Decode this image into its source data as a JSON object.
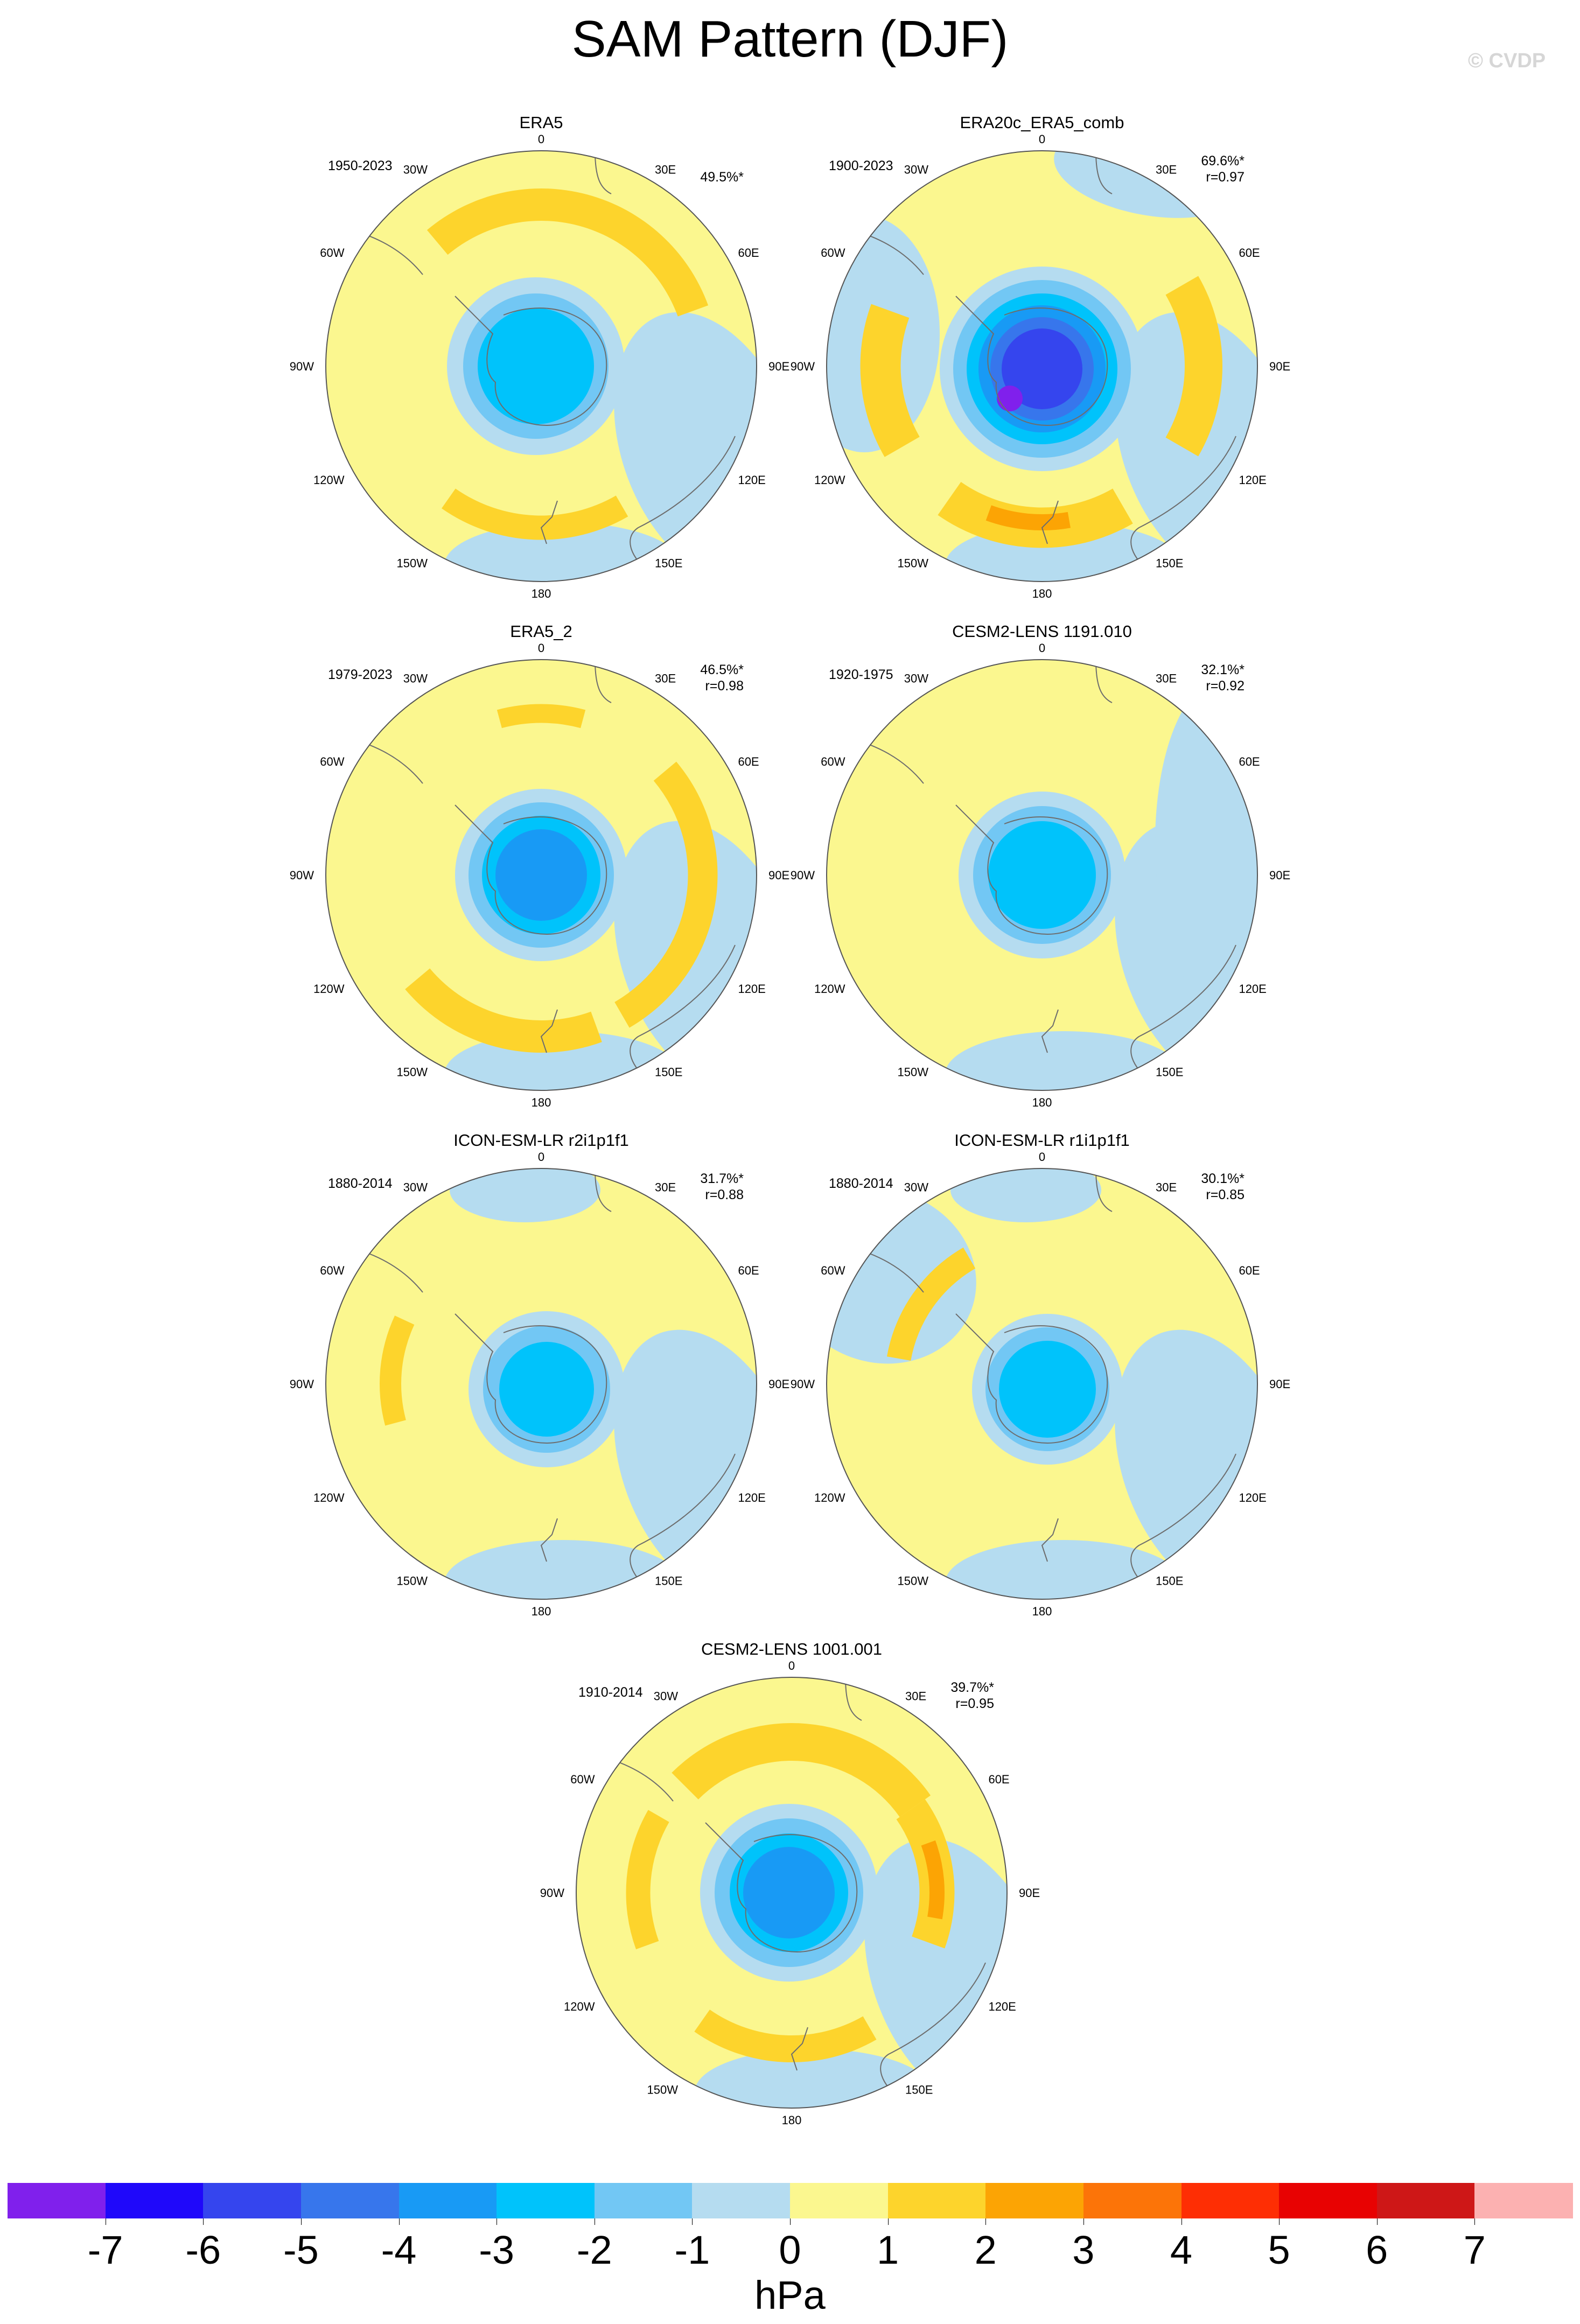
{
  "title": "SAM Pattern (DJF)",
  "watermark": "© CVDP",
  "colors": {
    "yellow": "#fbf78f",
    "lightblue": "#b5dcf0",
    "orange1": "#fdd42c",
    "orange2": "#fca404",
    "blue1": "#72c7f4",
    "blue2": "#00c3fb",
    "blue3": "#189af5",
    "blue4": "#3776ec",
    "blue5": "#3545ee",
    "blue6": "#1f08fa",
    "purple": "#8020ec",
    "coast": "#6d6d6d"
  },
  "longitude_labels": [
    "0",
    "30E",
    "60E",
    "90E",
    "120E",
    "150E",
    "180",
    "150W",
    "120W",
    "90W",
    "60W",
    "30W"
  ],
  "panels": [
    {
      "title": "ERA5",
      "years": "1950-2023",
      "pct": "49.5%*",
      "r": ""
    },
    {
      "title": "ERA20c_ERA5_comb",
      "years": "1900-2023",
      "pct": "69.6%*",
      "r": "r=0.97"
    },
    {
      "title": "ERA5_2",
      "years": "1979-2023",
      "pct": "46.5%*",
      "r": "r=0.98"
    },
    {
      "title": "CESM2-LENS 1191.010",
      "years": "1920-1975",
      "pct": "32.1%*",
      "r": "r=0.92"
    },
    {
      "title": "ICON-ESM-LR r2i1p1f1",
      "years": "1880-2014",
      "pct": "31.7%*",
      "r": "r=0.88"
    },
    {
      "title": "ICON-ESM-LR r1i1p1f1",
      "years": "1880-2014",
      "pct": "30.1%*",
      "r": "r=0.85"
    },
    {
      "title": "CESM2-LENS 1001.001",
      "years": "1910-2014",
      "pct": "39.7%*",
      "r": "r=0.95"
    }
  ],
  "colorbar": {
    "labels": [
      "-7",
      "-6",
      "-5",
      "-4",
      "-3",
      "-2",
      "-1",
      "0",
      "1",
      "2",
      "3",
      "4",
      "5",
      "6",
      "7"
    ],
    "colors": [
      "#8020ec",
      "#1f08fa",
      "#3545ee",
      "#3776ec",
      "#189af5",
      "#00c3fb",
      "#72c7f4",
      "#b5dcf0",
      "#fbf78f",
      "#fdd42c",
      "#fca404",
      "#fc7408",
      "#fe2e04",
      "#e80202",
      "#ce1717",
      "#fcb1b1"
    ],
    "units": "hPa"
  }
}
